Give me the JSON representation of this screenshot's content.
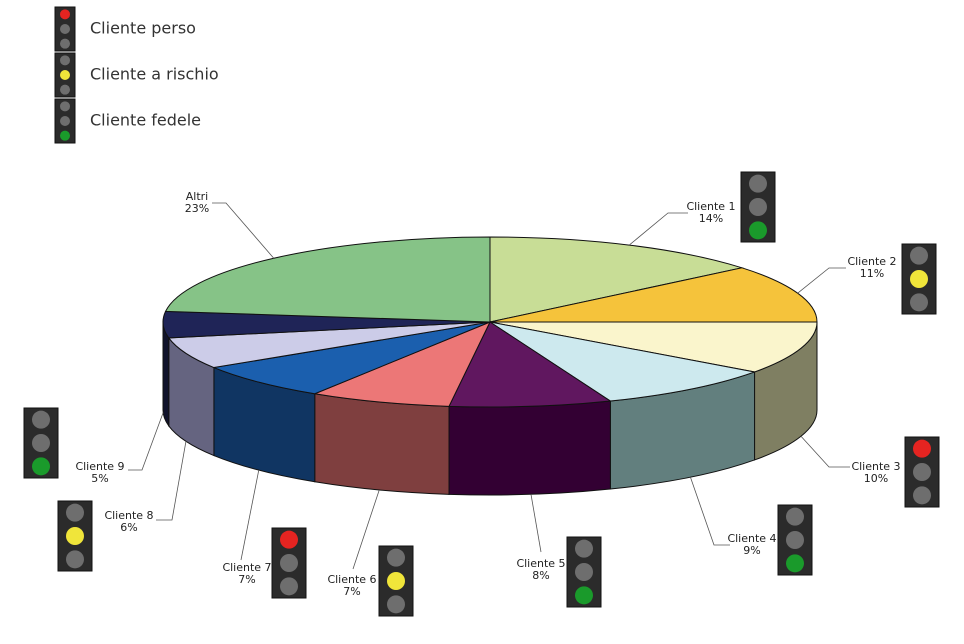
{
  "chart_data": {
    "type": "pie3d",
    "categories": [
      "Cliente 1",
      "Cliente 2",
      "Cliente 3",
      "Cliente 4",
      "Cliente 5",
      "Cliente 6",
      "Cliente 7",
      "Cliente 8",
      "Cliente 9",
      "Altri"
    ],
    "values": [
      14,
      11,
      10,
      9,
      8,
      7,
      7,
      6,
      5,
      23
    ],
    "value_labels": [
      "14%",
      "11%",
      "10%",
      "9%",
      "8%",
      "7%",
      "7%",
      "6%",
      "5%",
      "23%"
    ],
    "colors": [
      "#c8dd96",
      "#f5c33b",
      "#faf5cc",
      "#cde9ee",
      "#60175f",
      "#ec7777",
      "#1b5fae",
      "#cccce8",
      "#1f2457",
      "#86c387"
    ],
    "side_colors": [
      "#646e4b",
      "#7a611d",
      "#7f7f62",
      "#627f7e",
      "#330033",
      "#7f3f3f",
      "#103562",
      "#656480",
      "#10122b",
      "#436143"
    ],
    "lights": [
      "green",
      "yellow",
      "red",
      "green",
      "green",
      "yellow",
      "red",
      "yellow",
      "green",
      null
    ],
    "legend": [
      {
        "name": "Cliente perso",
        "light": "red"
      },
      {
        "name": "Cliente a rischio",
        "light": "yellow"
      },
      {
        "name": "Cliente fedele",
        "light": "green"
      }
    ]
  }
}
